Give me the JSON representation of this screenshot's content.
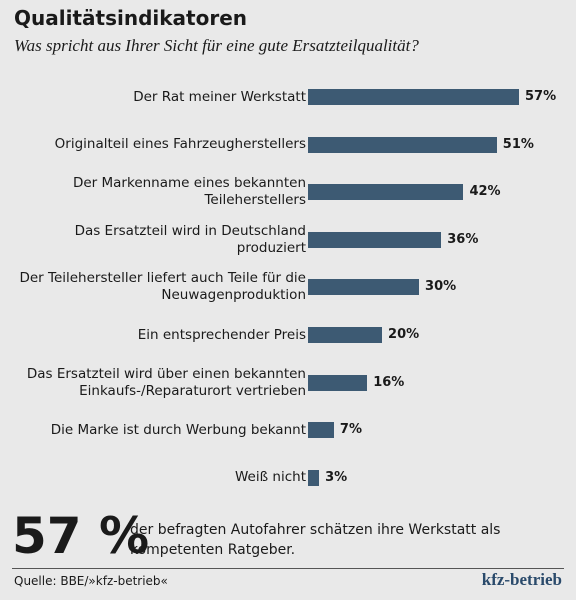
{
  "chart_data": {
    "type": "bar",
    "orientation": "horizontal",
    "title": "Qualitätsindikatoren",
    "subtitle": "Was spricht aus Ihrer Sicht für eine gute Ersatzteilqualität?",
    "categories": [
      "Der Rat meiner Werkstatt",
      "Originalteil eines Fahrzeugherstellers",
      "Der Markenname eines bekannten Teileherstellers",
      "Das Ersatzteil wird in Deutschland produziert",
      "Der Teilehersteller liefert auch Teile für die Neuwagenproduktion",
      "Ein entsprechender Preis",
      "Das Ersatzteil wird über einen bekannten Einkaufs-/Reparaturort vertrieben",
      "Die Marke ist durch Werbung bekannt",
      "Weiß nicht"
    ],
    "values": [
      57,
      51,
      42,
      36,
      30,
      20,
      16,
      7,
      3
    ],
    "value_labels": [
      "57%",
      "51%",
      "42%",
      "36%",
      "30%",
      "20%",
      "16%",
      "7%",
      "3%"
    ],
    "color": "#3d5a73",
    "highlight": {
      "number": "57 %",
      "text": "der befragten Autofahrer schätzen ihre Werkstatt als kompe­tenten Ratgeber."
    },
    "source": "Quelle: BBE/»kfz-betrieb«",
    "logo": "kfz-betrieb"
  }
}
